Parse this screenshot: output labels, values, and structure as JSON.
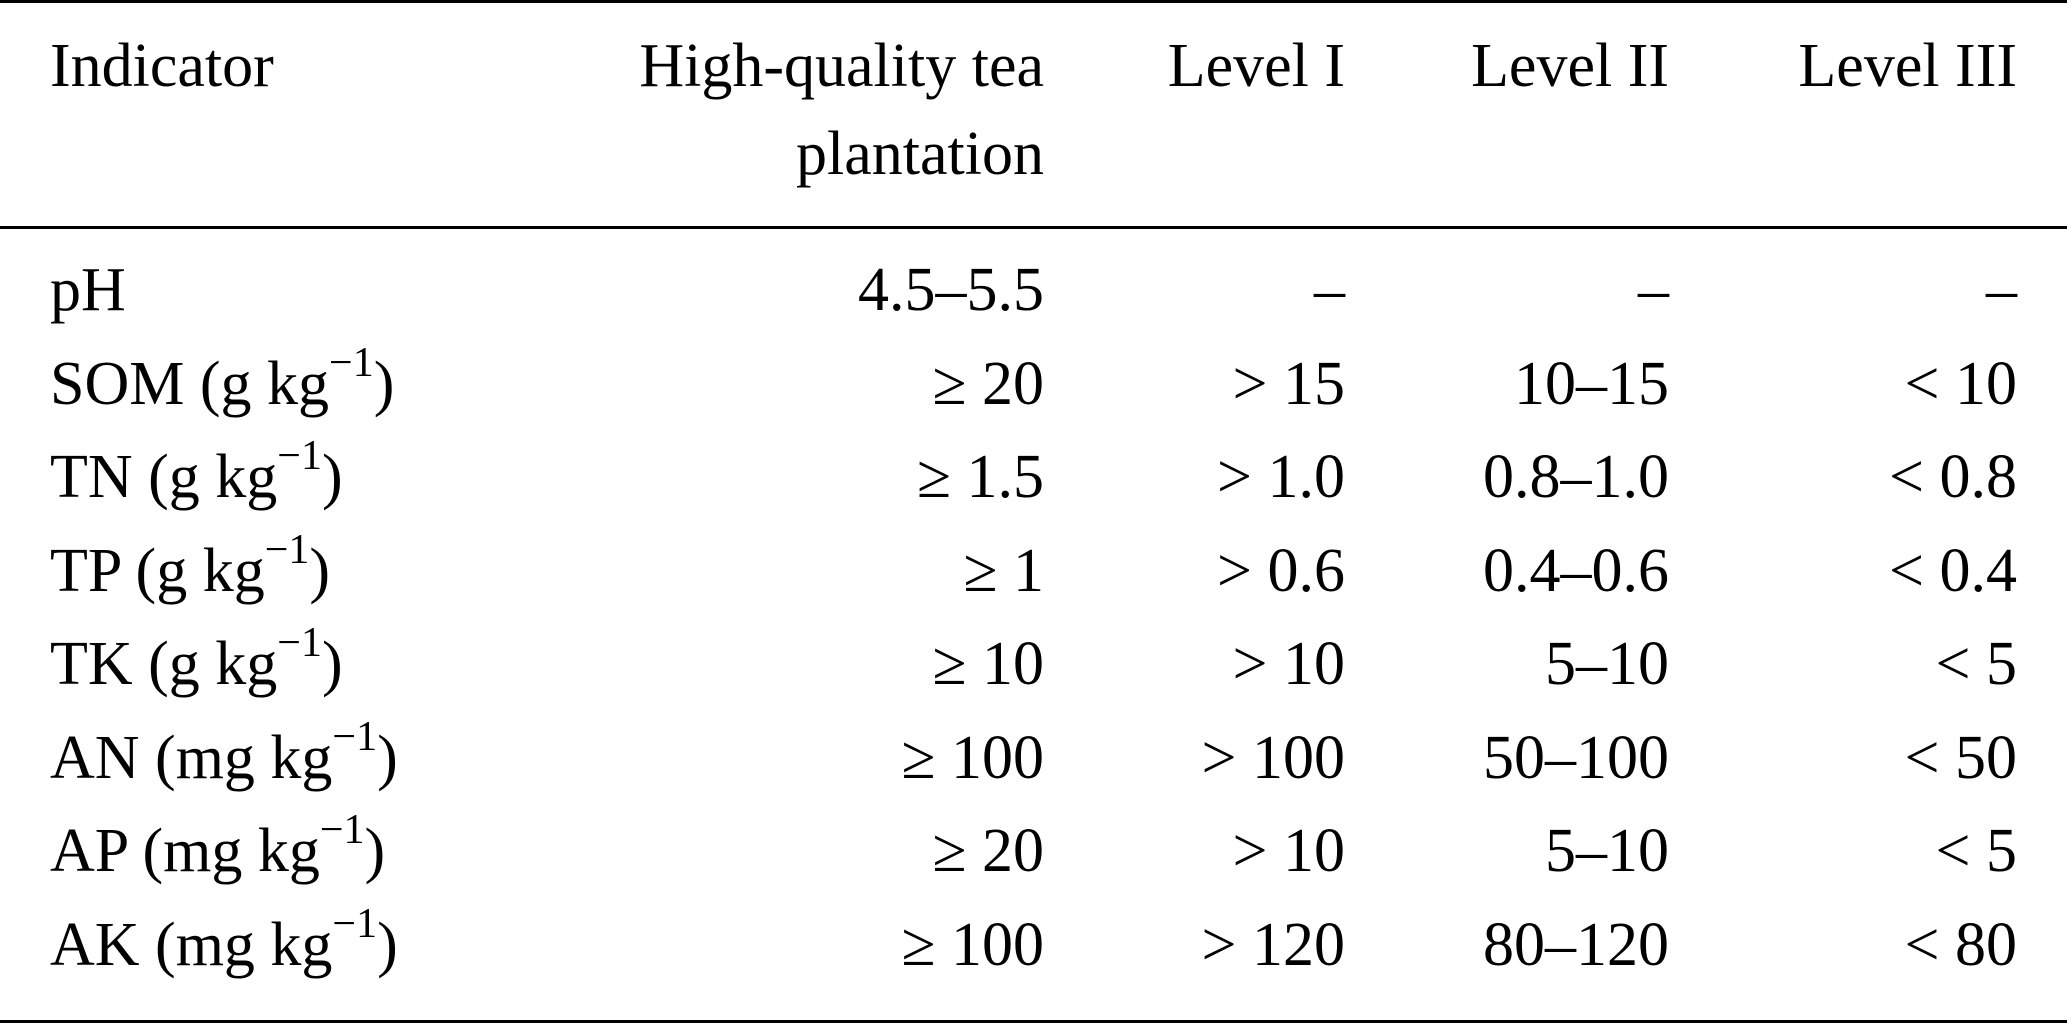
{
  "table": {
    "headers": {
      "indicator": "Indicator",
      "high_quality_line1": "High-quality tea",
      "high_quality_line2": "plantation",
      "level1": "Level I",
      "level2": "Level II",
      "level3": "Level III"
    },
    "rows": [
      {
        "indicator": "pH",
        "unit_sup": "",
        "unit_close": "",
        "high_quality": "4.5–5.5",
        "level1": "–",
        "level2": "–",
        "level3": "–"
      },
      {
        "indicator": "SOM (g kg",
        "unit_sup": "−1",
        "unit_close": ")",
        "high_quality": "≥ 20",
        "level1": "> 15",
        "level2": "10–15",
        "level3": "< 10"
      },
      {
        "indicator": "TN (g kg",
        "unit_sup": "−1",
        "unit_close": ")",
        "high_quality": "≥ 1.5",
        "level1": "> 1.0",
        "level2": "0.8–1.0",
        "level3": "< 0.8"
      },
      {
        "indicator": "TP (g kg",
        "unit_sup": "−1",
        "unit_close": ")",
        "high_quality": "≥ 1",
        "level1": "> 0.6",
        "level2": "0.4–0.6",
        "level3": "< 0.4"
      },
      {
        "indicator": "TK (g kg",
        "unit_sup": "−1",
        "unit_close": ")",
        "high_quality": "≥ 10",
        "level1": "> 10",
        "level2": "5–10",
        "level3": "< 5"
      },
      {
        "indicator": "AN (mg kg",
        "unit_sup": "−1",
        "unit_close": ")",
        "high_quality": "≥ 100",
        "level1": "> 100",
        "level2": "50–100",
        "level3": "< 50"
      },
      {
        "indicator": "AP (mg kg",
        "unit_sup": "−1",
        "unit_close": ")",
        "high_quality": "≥ 20",
        "level1": "> 10",
        "level2": "5–10",
        "level3": "< 5"
      },
      {
        "indicator": "AK (mg kg",
        "unit_sup": "−1",
        "unit_close": ")",
        "high_quality": "≥ 100",
        "level1": "> 120",
        "level2": "80–120",
        "level3": "< 80"
      }
    ]
  }
}
